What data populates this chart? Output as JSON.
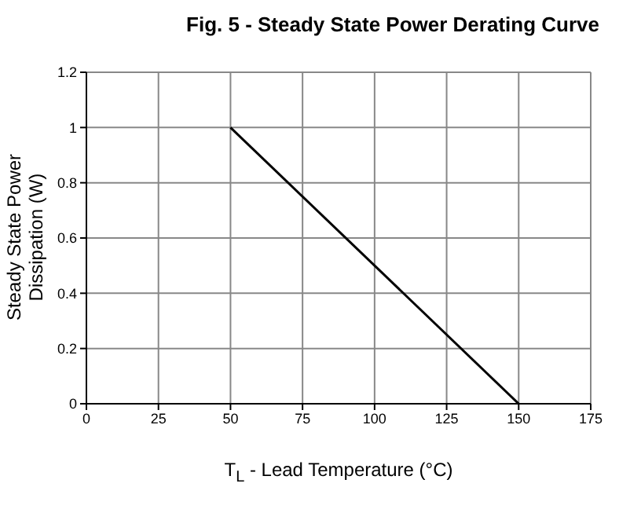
{
  "chart_data": {
    "type": "line",
    "title": "Fig. 5 - Steady State Power Derating Curve",
    "xlabel": "T$_{L}$ - Lead Temperature (°C)",
    "ylabel": "Steady State Power\nDissipation (W)",
    "x": [
      50,
      150
    ],
    "series": [
      {
        "color": "#000000",
        "values": [
          1,
          0
        ]
      }
    ],
    "xlim": [
      0,
      175
    ],
    "xticks": [
      0,
      25,
      50,
      75,
      100,
      125,
      150,
      175
    ],
    "ylim": [
      0,
      1.2
    ],
    "yticks": [
      0,
      0.2,
      0.4,
      0.6,
      0.8,
      1,
      1.2
    ],
    "grid": true,
    "marker": "none",
    "line_style": "solid",
    "legend": false
  }
}
